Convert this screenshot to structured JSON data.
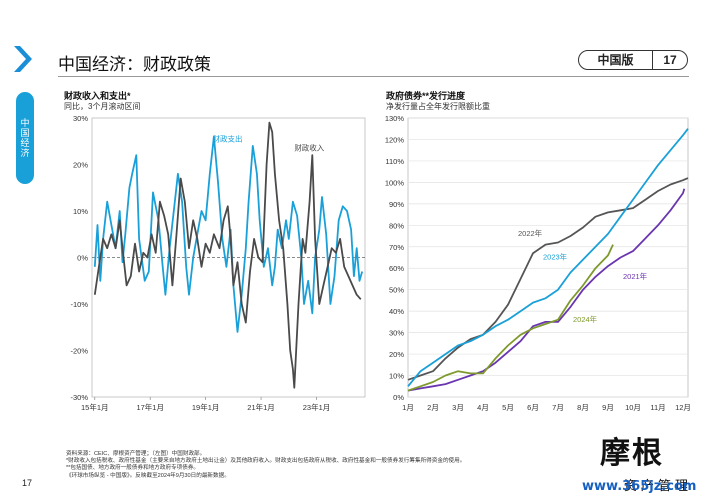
{
  "sidebar": {
    "tab_label": "中国经济"
  },
  "header": {
    "title": "中国经济：财政政策",
    "badge_label": "中国版",
    "page_number": "17"
  },
  "colors": {
    "accent": "#1aa0d8",
    "chevron": "#1a8fd8"
  },
  "chart_data": [
    {
      "type": "line",
      "title": "财政收入和支出*",
      "subtitle": "同比，3个月滚动区间",
      "ylim": [
        -30,
        30
      ],
      "yticks": [
        "30%",
        "20%",
        "10%",
        "0%",
        "-10%",
        "-20%",
        "-30%"
      ],
      "x_range": [
        2014.9,
        2024.75
      ],
      "xticks": [
        {
          "value": 2015.0,
          "label": "15年1月"
        },
        {
          "value": 2017.0,
          "label": "17年1月"
        },
        {
          "value": 2019.0,
          "label": "19年1月"
        },
        {
          "value": 2021.0,
          "label": "21年1月"
        },
        {
          "value": 2023.0,
          "label": "23年1月"
        }
      ],
      "series": [
        {
          "name": "财政支出",
          "color": "#1aa0d8",
          "label_pos": [
            2019.25,
            25
          ],
          "points": [
            [
              2015.0,
              -2
            ],
            [
              2015.1,
              7
            ],
            [
              2015.2,
              -5
            ],
            [
              2015.3,
              4
            ],
            [
              2015.45,
              12
            ],
            [
              2015.6,
              7
            ],
            [
              2015.75,
              2
            ],
            [
              2015.9,
              10
            ],
            [
              2016.0,
              -1
            ],
            [
              2016.1,
              5
            ],
            [
              2016.25,
              15
            ],
            [
              2016.35,
              18
            ],
            [
              2016.5,
              22
            ],
            [
              2016.6,
              4
            ],
            [
              2016.8,
              -5
            ],
            [
              2016.95,
              -3
            ],
            [
              2017.1,
              14
            ],
            [
              2017.3,
              8
            ],
            [
              2017.45,
              -2
            ],
            [
              2017.55,
              -8
            ],
            [
              2017.7,
              2
            ],
            [
              2017.85,
              10
            ],
            [
              2018.0,
              18
            ],
            [
              2018.15,
              12
            ],
            [
              2018.3,
              -2
            ],
            [
              2018.4,
              -8
            ],
            [
              2018.55,
              0
            ],
            [
              2018.7,
              5
            ],
            [
              2018.85,
              10
            ],
            [
              2019.0,
              8
            ],
            [
              2019.15,
              18
            ],
            [
              2019.3,
              26
            ],
            [
              2019.45,
              16
            ],
            [
              2019.6,
              4
            ],
            [
              2019.75,
              -2
            ],
            [
              2019.9,
              6
            ],
            [
              2020.0,
              -6
            ],
            [
              2020.15,
              -16
            ],
            [
              2020.3,
              -8
            ],
            [
              2020.45,
              2
            ],
            [
              2020.55,
              12
            ],
            [
              2020.7,
              24
            ],
            [
              2020.85,
              18
            ],
            [
              2020.95,
              8
            ],
            [
              2021.1,
              -2
            ],
            [
              2021.25,
              2
            ],
            [
              2021.4,
              -6
            ],
            [
              2021.5,
              -2
            ],
            [
              2021.6,
              6
            ],
            [
              2021.75,
              2
            ],
            [
              2021.9,
              8
            ],
            [
              2022.0,
              4
            ],
            [
              2022.15,
              12
            ],
            [
              2022.3,
              9
            ],
            [
              2022.45,
              0
            ],
            [
              2022.55,
              -10
            ],
            [
              2022.7,
              -5
            ],
            [
              2022.85,
              -12
            ],
            [
              2022.95,
              0
            ],
            [
              2023.1,
              6
            ],
            [
              2023.2,
              13
            ],
            [
              2023.35,
              5
            ],
            [
              2023.5,
              -10
            ],
            [
              2023.65,
              -4
            ],
            [
              2023.8,
              8
            ],
            [
              2023.95,
              11
            ],
            [
              2024.1,
              10
            ],
            [
              2024.25,
              6
            ],
            [
              2024.35,
              -4
            ],
            [
              2024.45,
              2
            ],
            [
              2024.55,
              -5
            ],
            [
              2024.65,
              -3
            ]
          ]
        },
        {
          "name": "财政收入",
          "color": "#4a4a4a",
          "label_pos": [
            2022.2,
            23
          ],
          "points": [
            [
              2015.0,
              -8
            ],
            [
              2015.15,
              -2
            ],
            [
              2015.3,
              4
            ],
            [
              2015.45,
              2
            ],
            [
              2015.6,
              5
            ],
            [
              2015.75,
              2
            ],
            [
              2015.9,
              8
            ],
            [
              2016.0,
              2
            ],
            [
              2016.15,
              -6
            ],
            [
              2016.3,
              -4
            ],
            [
              2016.45,
              3
            ],
            [
              2016.6,
              -3
            ],
            [
              2016.75,
              1
            ],
            [
              2016.9,
              0
            ],
            [
              2017.05,
              5
            ],
            [
              2017.2,
              1
            ],
            [
              2017.35,
              12
            ],
            [
              2017.5,
              9
            ],
            [
              2017.65,
              5
            ],
            [
              2017.8,
              -6
            ],
            [
              2017.95,
              5
            ],
            [
              2018.1,
              17
            ],
            [
              2018.25,
              12
            ],
            [
              2018.4,
              2
            ],
            [
              2018.55,
              8
            ],
            [
              2018.7,
              4
            ],
            [
              2018.85,
              -2
            ],
            [
              2019.0,
              3
            ],
            [
              2019.15,
              1
            ],
            [
              2019.3,
              5
            ],
            [
              2019.5,
              2
            ],
            [
              2019.65,
              8
            ],
            [
              2019.8,
              11
            ],
            [
              2019.9,
              4
            ],
            [
              2020.0,
              -6
            ],
            [
              2020.15,
              -1
            ],
            [
              2020.3,
              -10
            ],
            [
              2020.45,
              -14
            ],
            [
              2020.6,
              -3
            ],
            [
              2020.75,
              4
            ],
            [
              2020.9,
              0
            ],
            [
              2021.05,
              -1
            ],
            [
              2021.2,
              20
            ],
            [
              2021.3,
              29
            ],
            [
              2021.4,
              27
            ],
            [
              2021.5,
              18
            ],
            [
              2021.65,
              8
            ],
            [
              2021.8,
              2
            ],
            [
              2021.95,
              -10
            ],
            [
              2022.05,
              -20
            ],
            [
              2022.15,
              -24
            ],
            [
              2022.2,
              -28
            ],
            [
              2022.35,
              -10
            ],
            [
              2022.5,
              4
            ],
            [
              2022.6,
              1
            ],
            [
              2022.75,
              12
            ],
            [
              2022.85,
              22
            ],
            [
              2022.95,
              4
            ],
            [
              2023.1,
              -10
            ],
            [
              2023.25,
              -6
            ],
            [
              2023.4,
              -2
            ],
            [
              2023.55,
              2
            ],
            [
              2023.7,
              1
            ],
            [
              2023.85,
              4
            ],
            [
              2024.0,
              -2
            ],
            [
              2024.15,
              -4
            ],
            [
              2024.3,
              -6
            ],
            [
              2024.45,
              -8
            ],
            [
              2024.6,
              -9
            ]
          ]
        }
      ]
    },
    {
      "type": "line",
      "title": "政府债券**发行进度",
      "subtitle": "净发行量占全年发行限额比重",
      "ylim": [
        0,
        130
      ],
      "yticks": [
        "130%",
        "120%",
        "110%",
        "100%",
        "90%",
        "80%",
        "70%",
        "60%",
        "50%",
        "40%",
        "30%",
        "20%",
        "10%",
        "0%"
      ],
      "categories": [
        "1月",
        "2月",
        "3月",
        "4月",
        "5月",
        "6月",
        "7月",
        "8月",
        "9月",
        "10月",
        "11月",
        "12月"
      ],
      "series": [
        {
          "name": "2022年",
          "color": "#555555",
          "label_pos": [
            5.4,
            75
          ],
          "points": [
            [
              1,
              8
            ],
            [
              1.5,
              10
            ],
            [
              2,
              12
            ],
            [
              2.5,
              18
            ],
            [
              3,
              23
            ],
            [
              3.5,
              27
            ],
            [
              4,
              29
            ],
            [
              4.5,
              35
            ],
            [
              5,
              43
            ],
            [
              5.5,
              55
            ],
            [
              6,
              67
            ],
            [
              6.5,
              71
            ],
            [
              7,
              72
            ],
            [
              7.5,
              75
            ],
            [
              8,
              79
            ],
            [
              8.5,
              84
            ],
            [
              9,
              86
            ],
            [
              9.5,
              87
            ],
            [
              10,
              88
            ],
            [
              10.5,
              92
            ],
            [
              11,
              96
            ],
            [
              11.5,
              99
            ],
            [
              12,
              101
            ],
            [
              12.2,
              102
            ]
          ]
        },
        {
          "name": "2023年",
          "color": "#1aa0d8",
          "label_pos": [
            6.4,
            64
          ],
          "points": [
            [
              1,
              5
            ],
            [
              1.5,
              12
            ],
            [
              2,
              16
            ],
            [
              2.5,
              20
            ],
            [
              3,
              24
            ],
            [
              3.5,
              26
            ],
            [
              4,
              29
            ],
            [
              4.5,
              33
            ],
            [
              5,
              36
            ],
            [
              5.5,
              40
            ],
            [
              6,
              44
            ],
            [
              6.5,
              46
            ],
            [
              7,
              50
            ],
            [
              7.5,
              58
            ],
            [
              8,
              64
            ],
            [
              8.5,
              70
            ],
            [
              9,
              76
            ],
            [
              9.5,
              84
            ],
            [
              10,
              92
            ],
            [
              10.5,
              100
            ],
            [
              11,
              108
            ],
            [
              11.5,
              115
            ],
            [
              12,
              122
            ],
            [
              12.2,
              125
            ]
          ]
        },
        {
          "name": "2021年",
          "color": "#6a35b0",
          "label_pos": [
            9.6,
            55
          ],
          "points": [
            [
              1,
              3
            ],
            [
              1.5,
              4
            ],
            [
              2,
              5
            ],
            [
              2.5,
              6
            ],
            [
              3,
              8
            ],
            [
              3.5,
              10
            ],
            [
              4,
              12
            ],
            [
              4.5,
              16
            ],
            [
              5,
              21
            ],
            [
              5.5,
              26
            ],
            [
              6,
              33
            ],
            [
              6.5,
              35
            ],
            [
              7,
              35
            ],
            [
              7.5,
              42
            ],
            [
              8,
              50
            ],
            [
              8.5,
              56
            ],
            [
              9,
              61
            ],
            [
              9.5,
              65
            ],
            [
              10,
              68
            ],
            [
              10.5,
              74
            ],
            [
              11,
              80
            ],
            [
              11.5,
              87
            ],
            [
              12,
              95
            ],
            [
              12.05,
              97
            ]
          ]
        },
        {
          "name": "2024年",
          "color": "#7e9a2c",
          "label_pos": [
            7.6,
            35
          ],
          "points": [
            [
              1,
              3
            ],
            [
              1.5,
              5
            ],
            [
              2,
              7
            ],
            [
              2.5,
              10
            ],
            [
              3,
              12
            ],
            [
              3.5,
              11
            ],
            [
              4,
              11
            ],
            [
              4.5,
              18
            ],
            [
              5,
              24
            ],
            [
              5.5,
              29
            ],
            [
              6,
              32
            ],
            [
              6.5,
              34
            ],
            [
              7,
              36
            ],
            [
              7.5,
              45
            ],
            [
              8,
              52
            ],
            [
              8.5,
              60
            ],
            [
              9,
              66
            ],
            [
              9.2,
              71
            ]
          ]
        }
      ]
    }
  ],
  "footnotes": [
    "资料来源：CEIC、摩根资产管理；（左图）中国财政部。",
    "*财政收入包括税收、政府性基金（主要来自地方政府土地出让金）及其他政府收入。财政支出包括政府从税收、政府性基金和一般债券发行筹集所得资金的使用。",
    "**包括国债、地方政府一般债券和地方政府专项债券。",
    "《环球市场纵览 - 中国版》。反映截至2024年9月30日的最新数据。"
  ],
  "footer": {
    "page_number": "17",
    "logo_main": "摩根",
    "logo_sub": "资产管理",
    "watermark": "www.365jz.com"
  }
}
